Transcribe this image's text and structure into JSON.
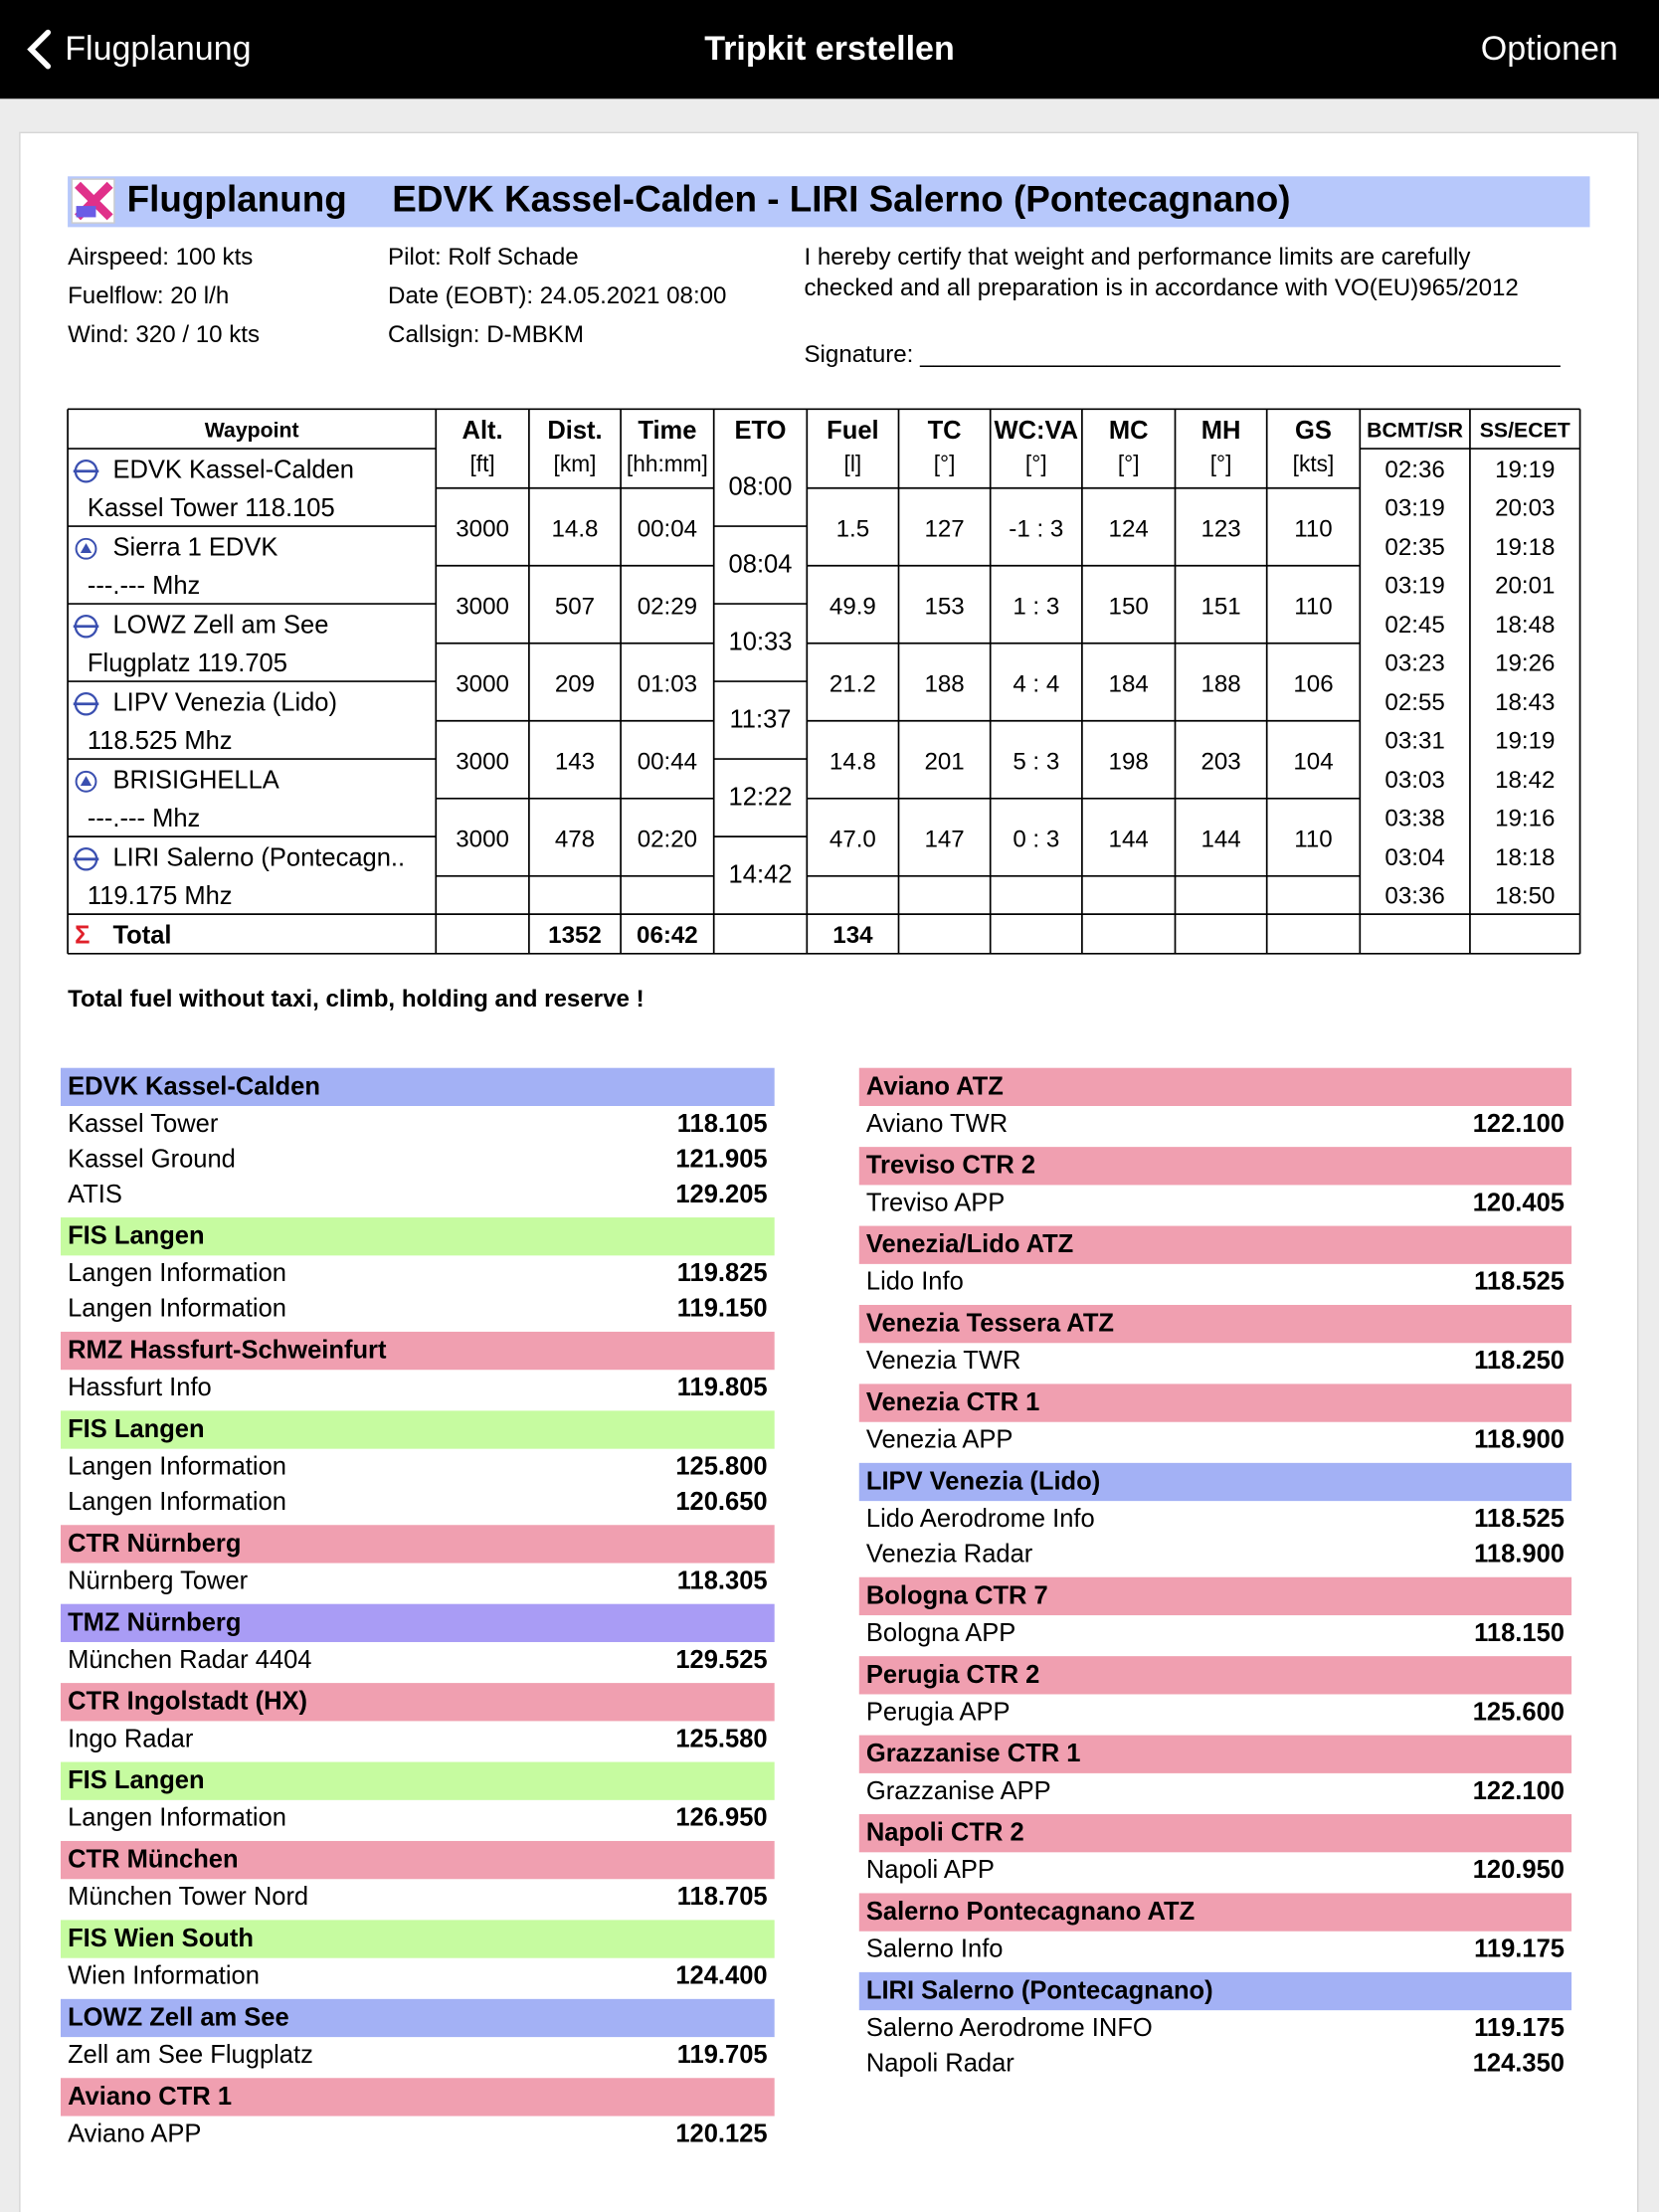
{
  "header": {
    "back": "Flugplanung",
    "title": "Tripkit erstellen",
    "options": "Optionen"
  },
  "doc": {
    "title": "Flugplanung",
    "route": "EDVK Kassel-Calden - LIRI Salerno (Pontecagnano)",
    "info_left": [
      "Airspeed: 100 kts",
      "Fuelflow: 20 l/h",
      "Wind: 320 / 10 kts"
    ],
    "info_mid": [
      "Pilot: Rolf Schade",
      "Date (EOBT): 24.05.2021 08:00",
      "Callsign: D-MBKM"
    ],
    "certify": [
      "I hereby certify that weight and performance limits are carefully",
      "checked and all preparation is in accordance with VO(EU)965/2012"
    ],
    "signature": "Signature: ________________________________________________",
    "table": {
      "columns": [
        {
          "name": "Waypoint"
        },
        {
          "name": "Alt.",
          "unit": "[ft]"
        },
        {
          "name": "Dist.",
          "unit": "[km]"
        },
        {
          "name": "Time",
          "unit": "[hh:mm]"
        },
        {
          "name": "ETO"
        },
        {
          "name": "Fuel",
          "unit": "[l]"
        },
        {
          "name": "TC",
          "unit": "[°]"
        },
        {
          "name": "WC:VA",
          "unit": "[°]"
        },
        {
          "name": "MC",
          "unit": "[°]"
        },
        {
          "name": "MH",
          "unit": "[°]"
        },
        {
          "name": "GS",
          "unit": "[kts]"
        },
        {
          "name": "BCMT/SR"
        },
        {
          "name": "SS/ECET"
        }
      ],
      "waypoints": [
        {
          "symbol": "airport",
          "name": "EDVK Kassel-Calden",
          "sub": "Kassel Tower 118.105",
          "eto": "08:00",
          "bcmt_sr": [
            "02:36",
            "03:19"
          ],
          "ss_ecet": [
            "19:19",
            "20:03"
          ]
        },
        {
          "symbol": "point",
          "name": "Sierra 1 EDVK",
          "sub": "---.--- Mhz",
          "eto": "08:04",
          "bcmt_sr": [
            "02:35",
            "03:19"
          ],
          "ss_ecet": [
            "19:18",
            "20:01"
          ]
        },
        {
          "symbol": "airport",
          "name": "LOWZ Zell am See",
          "sub": "Flugplatz 119.705",
          "eto": "10:33",
          "bcmt_sr": [
            "02:45",
            "03:23"
          ],
          "ss_ecet": [
            "18:48",
            "19:26"
          ]
        },
        {
          "symbol": "airport",
          "name": "LIPV Venezia (Lido)",
          "sub": "118.525 Mhz",
          "eto": "11:37",
          "bcmt_sr": [
            "02:55",
            "03:31"
          ],
          "ss_ecet": [
            "18:43",
            "19:19"
          ]
        },
        {
          "symbol": "point",
          "name": "BRISIGHELLA",
          "sub": "---.--- Mhz",
          "eto": "12:22",
          "bcmt_sr": [
            "03:03",
            "03:38"
          ],
          "ss_ecet": [
            "18:42",
            "19:16"
          ]
        },
        {
          "symbol": "airport",
          "name": "LIRI Salerno (Pontecagn..",
          "sub": "119.175 Mhz",
          "eto": "14:42",
          "bcmt_sr": [
            "03:04",
            "03:36"
          ],
          "ss_ecet": [
            "18:18",
            "18:50"
          ]
        }
      ],
      "legs": [
        {
          "alt": "3000",
          "dist": "14.8",
          "time": "00:04",
          "fuel": "1.5",
          "tc": "127",
          "wcva": "-1 : 3",
          "mc": "124",
          "mh": "123",
          "gs": "110"
        },
        {
          "alt": "3000",
          "dist": "507",
          "time": "02:29",
          "fuel": "49.9",
          "tc": "153",
          "wcva": "1 : 3",
          "mc": "150",
          "mh": "151",
          "gs": "110"
        },
        {
          "alt": "3000",
          "dist": "209",
          "time": "01:03",
          "fuel": "21.2",
          "tc": "188",
          "wcva": "4 : 4",
          "mc": "184",
          "mh": "188",
          "gs": "106"
        },
        {
          "alt": "3000",
          "dist": "143",
          "time": "00:44",
          "fuel": "14.8",
          "tc": "201",
          "wcva": "5 : 3",
          "mc": "198",
          "mh": "203",
          "gs": "104"
        },
        {
          "alt": "3000",
          "dist": "478",
          "time": "02:20",
          "fuel": "47.0",
          "tc": "147",
          "wcva": "0 : 3",
          "mc": "144",
          "mh": "144",
          "gs": "110"
        }
      ],
      "total": {
        "symbol": "Σ",
        "label": "Total",
        "dist": "1352",
        "time": "06:42",
        "fuel": "134"
      }
    },
    "note": "Total fuel without taxi, climb, holding and reserve !",
    "freq_left": [
      {
        "title": "EDVK Kassel-Calden",
        "color": "#a3b1f5",
        "entries": [
          {
            "name": "Kassel Tower",
            "freq": "118.105"
          },
          {
            "name": "Kassel Ground",
            "freq": "121.905"
          },
          {
            "name": "ATIS",
            "freq": "129.205"
          }
        ]
      },
      {
        "title": "FIS Langen",
        "color": "#c6fba0",
        "entries": [
          {
            "name": "Langen Information",
            "freq": "119.825"
          },
          {
            "name": "Langen Information",
            "freq": "119.150"
          }
        ]
      },
      {
        "title": "RMZ Hassfurt-Schweinfurt",
        "color": "#f09fb0",
        "entries": [
          {
            "name": "Hassfurt Info",
            "freq": "119.805"
          }
        ]
      },
      {
        "title": "FIS Langen",
        "color": "#c6fba0",
        "entries": [
          {
            "name": "Langen Information",
            "freq": "125.800"
          },
          {
            "name": "Langen Information",
            "freq": "120.650"
          }
        ]
      },
      {
        "title": "CTR Nürnberg",
        "color": "#f09fb0",
        "entries": [
          {
            "name": "Nürnberg Tower",
            "freq": "118.305"
          }
        ]
      },
      {
        "title": "TMZ Nürnberg",
        "color": "#a99cf5",
        "entries": [
          {
            "name": "München Radar 4404",
            "freq": "129.525"
          }
        ]
      },
      {
        "title": "CTR Ingolstadt (HX)",
        "color": "#f09fb0",
        "entries": [
          {
            "name": "Ingo Radar",
            "freq": "125.580"
          }
        ]
      },
      {
        "title": "FIS Langen",
        "color": "#c6fba0",
        "entries": [
          {
            "name": "Langen Information",
            "freq": "126.950"
          }
        ]
      },
      {
        "title": "CTR München",
        "color": "#f09fb0",
        "entries": [
          {
            "name": "München Tower Nord",
            "freq": "118.705"
          }
        ]
      },
      {
        "title": "FIS Wien South",
        "color": "#c6fba0",
        "entries": [
          {
            "name": "Wien Information",
            "freq": "124.400"
          }
        ]
      },
      {
        "title": "LOWZ Zell am See",
        "color": "#a3b1f5",
        "entries": [
          {
            "name": "Zell am See Flugplatz",
            "freq": "119.705"
          }
        ]
      },
      {
        "title": "Aviano CTR 1",
        "color": "#f09fb0",
        "entries": [
          {
            "name": "Aviano APP",
            "freq": "120.125"
          }
        ]
      }
    ],
    "freq_right": [
      {
        "title": "Aviano ATZ",
        "color": "#f09fb0",
        "entries": [
          {
            "name": "Aviano TWR",
            "freq": "122.100"
          }
        ]
      },
      {
        "title": "Treviso CTR 2",
        "color": "#f09fb0",
        "entries": [
          {
            "name": "Treviso APP",
            "freq": "120.405"
          }
        ]
      },
      {
        "title": "Venezia/Lido ATZ",
        "color": "#f09fb0",
        "entries": [
          {
            "name": "Lido Info",
            "freq": "118.525"
          }
        ]
      },
      {
        "title": "Venezia Tessera ATZ",
        "color": "#f09fb0",
        "entries": [
          {
            "name": "Venezia TWR",
            "freq": "118.250"
          }
        ]
      },
      {
        "title": "Venezia CTR 1",
        "color": "#f09fb0",
        "entries": [
          {
            "name": "Venezia APP",
            "freq": "118.900"
          }
        ]
      },
      {
        "title": "LIPV Venezia (Lido)",
        "color": "#a3b1f5",
        "entries": [
          {
            "name": "Lido Aerodrome Info",
            "freq": "118.525"
          },
          {
            "name": "Venezia Radar",
            "freq": "118.900"
          }
        ]
      },
      {
        "title": "Bologna CTR 7",
        "color": "#f09fb0",
        "entries": [
          {
            "name": "Bologna APP",
            "freq": "118.150"
          }
        ]
      },
      {
        "title": "Perugia CTR 2",
        "color": "#f09fb0",
        "entries": [
          {
            "name": "Perugia APP",
            "freq": "125.600"
          }
        ]
      },
      {
        "title": "Grazzanise CTR 1",
        "color": "#f09fb0",
        "entries": [
          {
            "name": "Grazzanise APP",
            "freq": "122.100"
          }
        ]
      },
      {
        "title": "Napoli CTR 2",
        "color": "#f09fb0",
        "entries": [
          {
            "name": "Napoli APP",
            "freq": "120.950"
          }
        ]
      },
      {
        "title": "Salerno Pontecagnano ATZ",
        "color": "#f09fb0",
        "entries": [
          {
            "name": "Salerno Info",
            "freq": "119.175"
          }
        ]
      },
      {
        "title": "LIRI Salerno (Pontecagnano)",
        "color": "#a3b1f5",
        "entries": [
          {
            "name": "Salerno Aerodrome INFO",
            "freq": "119.175"
          },
          {
            "name": "Napoli Radar",
            "freq": "124.350"
          }
        ]
      }
    ]
  }
}
